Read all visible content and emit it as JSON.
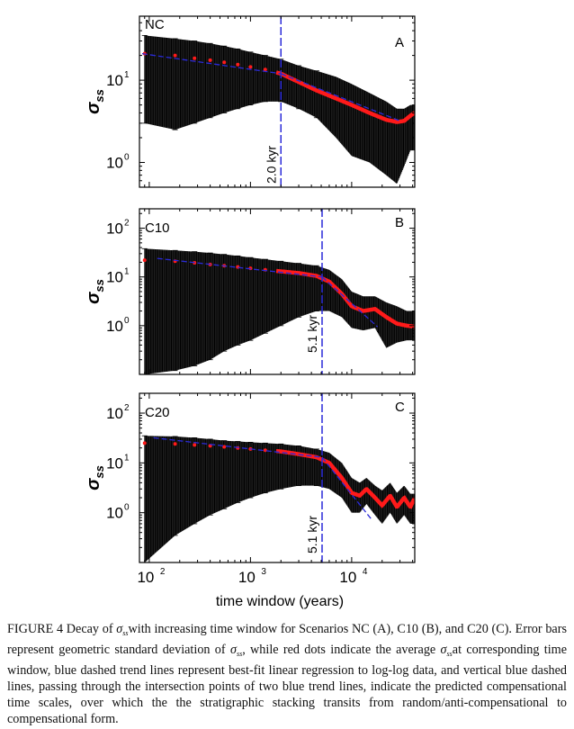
{
  "chart_data": [
    {
      "type": "scatter",
      "panel_id": "NC",
      "panel_letter": "A",
      "ylabel_main": "σ",
      "ylabel_sub": "ss",
      "xlabel": "",
      "xscale": "log",
      "yscale": "log",
      "xlim": [
        80,
        42000
      ],
      "ylim": [
        0.5,
        60
      ],
      "y_ticks": [
        {
          "value": 1,
          "label": "10",
          "exp": "0"
        },
        {
          "value": 10,
          "label": "10",
          "exp": "1"
        }
      ],
      "compensation_time_kyr": 2.0,
      "compensation_time_x": 2000,
      "vline_label": "2.0 kyr",
      "trend1": {
        "x": [
          85,
          2000
        ],
        "y": [
          21,
          12
        ]
      },
      "trend2": {
        "x": [
          2000,
          30000
        ],
        "y": [
          12,
          3.2
        ]
      },
      "mean_points": [
        {
          "x": 90,
          "y": 21
        },
        {
          "x": 180,
          "y": 20
        },
        {
          "x": 280,
          "y": 18.5
        },
        {
          "x": 400,
          "y": 17.5
        },
        {
          "x": 550,
          "y": 16.5
        },
        {
          "x": 750,
          "y": 15.5
        },
        {
          "x": 1000,
          "y": 14.5
        },
        {
          "x": 1400,
          "y": 13.5
        },
        {
          "x": 2000,
          "y": 12
        },
        {
          "x": 3000,
          "y": 9.5
        },
        {
          "x": 4500,
          "y": 7.5
        },
        {
          "x": 7000,
          "y": 6.0
        },
        {
          "x": 10000,
          "y": 5.0
        },
        {
          "x": 15000,
          "y": 4.0
        },
        {
          "x": 22000,
          "y": 3.3
        },
        {
          "x": 28000,
          "y": 3.1
        },
        {
          "x": 33000,
          "y": 3.2
        },
        {
          "x": 38000,
          "y": 3.7
        },
        {
          "x": 42000,
          "y": 4.0
        }
      ],
      "error_bars": [
        {
          "x": 90,
          "lo": 3,
          "hi": 35
        },
        {
          "x": 180,
          "lo": 2.5,
          "hi": 32
        },
        {
          "x": 280,
          "lo": 3,
          "hi": 30
        },
        {
          "x": 400,
          "lo": 3.5,
          "hi": 28
        },
        {
          "x": 550,
          "lo": 4,
          "hi": 26
        },
        {
          "x": 750,
          "lo": 4.5,
          "hi": 24
        },
        {
          "x": 1000,
          "lo": 5,
          "hi": 22
        },
        {
          "x": 1400,
          "lo": 5.5,
          "hi": 20
        },
        {
          "x": 2000,
          "lo": 5.5,
          "hi": 18
        },
        {
          "x": 3000,
          "lo": 4.5,
          "hi": 15
        },
        {
          "x": 4500,
          "lo": 3.5,
          "hi": 13
        },
        {
          "x": 7000,
          "lo": 2,
          "hi": 11
        },
        {
          "x": 10000,
          "lo": 1.2,
          "hi": 9
        },
        {
          "x": 15000,
          "lo": 1.0,
          "hi": 7
        },
        {
          "x": 22000,
          "lo": 0.7,
          "hi": 5.5
        },
        {
          "x": 28000,
          "lo": 0.55,
          "hi": 4.5
        },
        {
          "x": 33000,
          "lo": 0.9,
          "hi": 4.5
        },
        {
          "x": 38000,
          "lo": 1.4,
          "hi": 5
        }
      ]
    },
    {
      "type": "scatter",
      "panel_id": "C10",
      "panel_letter": "B",
      "ylabel_main": "σ",
      "ylabel_sub": "ss",
      "xlabel": "",
      "xscale": "log",
      "yscale": "log",
      "xlim": [
        80,
        42000
      ],
      "ylim": [
        0.1,
        250
      ],
      "y_ticks": [
        {
          "value": 1,
          "label": "10",
          "exp": "0"
        },
        {
          "value": 10,
          "label": "10",
          "exp": "1"
        },
        {
          "value": 100,
          "label": "10",
          "exp": "2"
        }
      ],
      "compensation_time_kyr": 5.1,
      "compensation_time_x": 5100,
      "vline_label": "5.1 kyr",
      "trend1": {
        "x": [
          120,
          5100
        ],
        "y": [
          24,
          10
        ]
      },
      "trend2": {
        "x": [
          5100,
          18000
        ],
        "y": [
          10,
          0.95
        ]
      },
      "mean_points": [
        {
          "x": 90,
          "y": 22
        },
        {
          "x": 180,
          "y": 21
        },
        {
          "x": 280,
          "y": 19.5
        },
        {
          "x": 400,
          "y": 18
        },
        {
          "x": 550,
          "y": 17
        },
        {
          "x": 750,
          "y": 16
        },
        {
          "x": 1000,
          "y": 15
        },
        {
          "x": 1400,
          "y": 14
        },
        {
          "x": 2000,
          "y": 13
        },
        {
          "x": 3000,
          "y": 12
        },
        {
          "x": 4500,
          "y": 10.5
        },
        {
          "x": 6000,
          "y": 8
        },
        {
          "x": 8000,
          "y": 4.5
        },
        {
          "x": 10000,
          "y": 2.5
        },
        {
          "x": 13000,
          "y": 2.0
        },
        {
          "x": 17000,
          "y": 2.2
        },
        {
          "x": 22000,
          "y": 1.5
        },
        {
          "x": 28000,
          "y": 1.1
        },
        {
          "x": 35000,
          "y": 1.0
        },
        {
          "x": 42000,
          "y": 0.95
        }
      ],
      "error_bars": [
        {
          "x": 90,
          "lo": 0.1,
          "hi": 38
        },
        {
          "x": 180,
          "lo": 0.12,
          "hi": 35
        },
        {
          "x": 280,
          "lo": 0.15,
          "hi": 33
        },
        {
          "x": 400,
          "lo": 0.2,
          "hi": 31
        },
        {
          "x": 550,
          "lo": 0.3,
          "hi": 29
        },
        {
          "x": 750,
          "lo": 0.4,
          "hi": 27
        },
        {
          "x": 1000,
          "lo": 0.5,
          "hi": 25
        },
        {
          "x": 1400,
          "lo": 0.7,
          "hi": 23
        },
        {
          "x": 2000,
          "lo": 1.0,
          "hi": 21
        },
        {
          "x": 3000,
          "lo": 1.5,
          "hi": 19
        },
        {
          "x": 4500,
          "lo": 2.0,
          "hi": 17
        },
        {
          "x": 6000,
          "lo": 2.0,
          "hi": 14
        },
        {
          "x": 8000,
          "lo": 1.5,
          "hi": 9
        },
        {
          "x": 10000,
          "lo": 0.9,
          "hi": 5
        },
        {
          "x": 13000,
          "lo": 0.8,
          "hi": 4
        },
        {
          "x": 17000,
          "lo": 0.9,
          "hi": 4
        },
        {
          "x": 22000,
          "lo": 0.35,
          "hi": 3
        },
        {
          "x": 28000,
          "lo": 0.45,
          "hi": 2.5
        },
        {
          "x": 35000,
          "lo": 0.5,
          "hi": 2
        }
      ]
    },
    {
      "type": "scatter",
      "panel_id": "C20",
      "panel_letter": "C",
      "ylabel_main": "σ",
      "ylabel_sub": "ss",
      "xlabel": "time window (years)",
      "xscale": "log",
      "yscale": "log",
      "xlim": [
        80,
        42000
      ],
      "ylim": [
        0.1,
        250
      ],
      "x_ticks": [
        {
          "value": 100,
          "label": "10",
          "exp": "2"
        },
        {
          "value": 1000,
          "label": "10",
          "exp": "3"
        },
        {
          "value": 10000,
          "label": "10",
          "exp": "4"
        }
      ],
      "y_ticks": [
        {
          "value": 1,
          "label": "10",
          "exp": "0"
        },
        {
          "value": 10,
          "label": "10",
          "exp": "1"
        },
        {
          "value": 100,
          "label": "10",
          "exp": "2"
        }
      ],
      "compensation_time_kyr": 5.1,
      "compensation_time_x": 5100,
      "vline_label": "5.1 kyr",
      "trend1": {
        "x": [
          110,
          5100
        ],
        "y": [
          32,
          13
        ]
      },
      "trend2": {
        "x": [
          5100,
          16000
        ],
        "y": [
          13,
          0.7
        ]
      },
      "mean_points": [
        {
          "x": 90,
          "y": 25
        },
        {
          "x": 180,
          "y": 24
        },
        {
          "x": 280,
          "y": 23
        },
        {
          "x": 400,
          "y": 22
        },
        {
          "x": 550,
          "y": 21
        },
        {
          "x": 750,
          "y": 20
        },
        {
          "x": 1000,
          "y": 19
        },
        {
          "x": 1400,
          "y": 18
        },
        {
          "x": 2000,
          "y": 17
        },
        {
          "x": 3000,
          "y": 15
        },
        {
          "x": 4500,
          "y": 13
        },
        {
          "x": 6000,
          "y": 10
        },
        {
          "x": 8000,
          "y": 5
        },
        {
          "x": 10000,
          "y": 2.5
        },
        {
          "x": 12000,
          "y": 2.2
        },
        {
          "x": 14000,
          "y": 3.0
        },
        {
          "x": 17000,
          "y": 2.0
        },
        {
          "x": 20000,
          "y": 1.4
        },
        {
          "x": 24000,
          "y": 2.2
        },
        {
          "x": 28000,
          "y": 1.3
        },
        {
          "x": 33000,
          "y": 2.0
        },
        {
          "x": 38000,
          "y": 1.3
        },
        {
          "x": 42000,
          "y": 2.0
        }
      ],
      "error_bars": [
        {
          "x": 90,
          "lo": 0.1,
          "hi": 35
        },
        {
          "x": 180,
          "lo": 0.35,
          "hi": 34
        },
        {
          "x": 280,
          "lo": 0.6,
          "hi": 32
        },
        {
          "x": 400,
          "lo": 0.9,
          "hi": 30
        },
        {
          "x": 550,
          "lo": 1.2,
          "hi": 28
        },
        {
          "x": 750,
          "lo": 1.6,
          "hi": 27
        },
        {
          "x": 1000,
          "lo": 2.0,
          "hi": 26
        },
        {
          "x": 1400,
          "lo": 2.5,
          "hi": 25
        },
        {
          "x": 2000,
          "lo": 3.0,
          "hi": 24
        },
        {
          "x": 3000,
          "lo": 3.5,
          "hi": 22
        },
        {
          "x": 4500,
          "lo": 3.5,
          "hi": 19
        },
        {
          "x": 6000,
          "lo": 3.0,
          "hi": 16
        },
        {
          "x": 8000,
          "lo": 2.0,
          "hi": 10
        },
        {
          "x": 10000,
          "lo": 1.0,
          "hi": 5
        },
        {
          "x": 12000,
          "lo": 1.0,
          "hi": 4
        },
        {
          "x": 14000,
          "lo": 1.5,
          "hi": 5
        },
        {
          "x": 17000,
          "lo": 0.9,
          "hi": 3.5
        },
        {
          "x": 20000,
          "lo": 0.6,
          "hi": 2.8
        },
        {
          "x": 24000,
          "lo": 1.0,
          "hi": 4
        },
        {
          "x": 28000,
          "lo": 0.6,
          "hi": 2.5
        },
        {
          "x": 33000,
          "lo": 0.9,
          "hi": 3.5
        },
        {
          "x": 38000,
          "lo": 0.6,
          "hi": 2.4
        }
      ]
    }
  ],
  "caption": {
    "prefix": "FIGURE 4 Decay of ",
    "sym": "σ",
    "sub": "ss",
    "p1": "with increasing time window for Scenarios NC (A), C10 (B), and C20 (C). Error bars represent geometric standard deviation of ",
    "p2": ", while red dots indicate the average ",
    "p3": "at corresponding time window, blue dashed trend lines represent best-fit linear regression to log-log data, and vertical blue dashed lines, passing through the intersection points of two blue trend lines, indicate the predicted compensational time scales, over which the the stratigraphic stacking transits from random/anti-compensational to compensational form."
  },
  "colors": {
    "mean": "#ff1a1a",
    "trend": "#2a2ad8",
    "errorbar": "#000000",
    "axis": "#000000"
  }
}
